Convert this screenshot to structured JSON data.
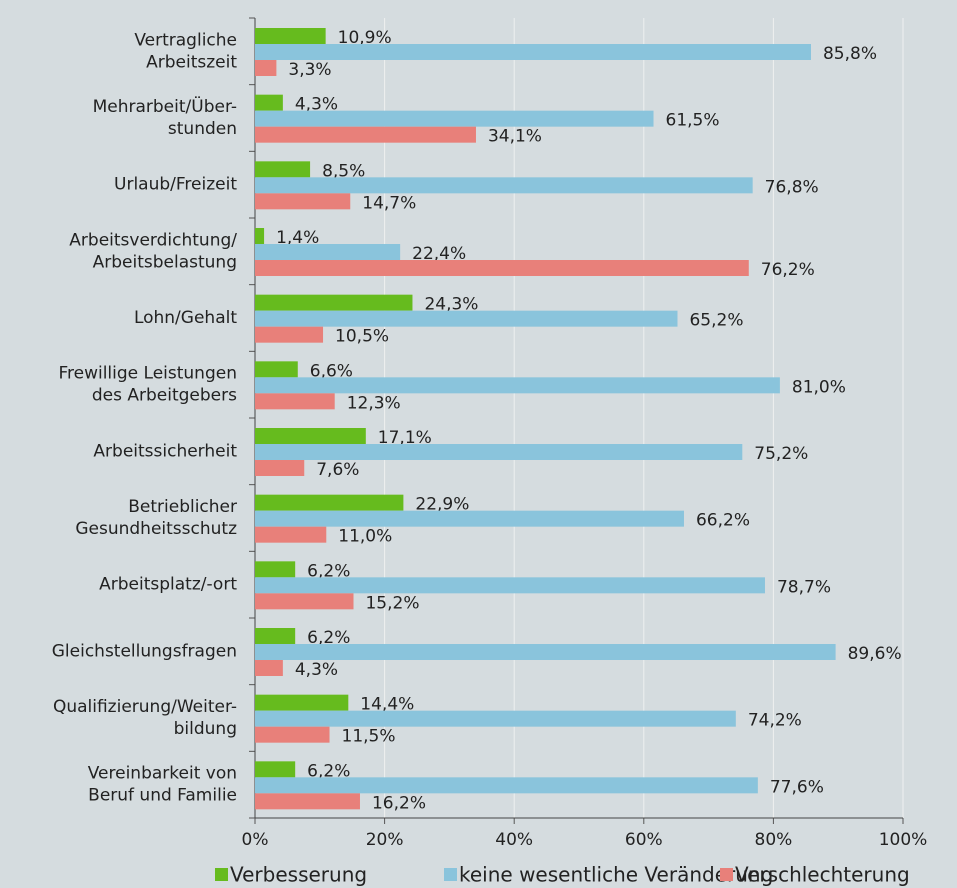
{
  "chart_data": {
    "type": "bar",
    "orientation": "horizontal",
    "categories": [
      [
        "Vertragliche",
        "Arbeitszeit"
      ],
      [
        "Mehrarbeit/Über-",
        "stunden"
      ],
      [
        "Urlaub/Freizeit"
      ],
      [
        "Arbeitsverdichtung/",
        "Arbeitsbelastung"
      ],
      [
        "Lohn/Gehalt"
      ],
      [
        "Frewillige Leistungen",
        "des Arbeitgebers"
      ],
      [
        "Arbeitssicherheit"
      ],
      [
        "Betrieblicher",
        "Gesundheitsschutz"
      ],
      [
        "Arbeitsplatz/-ort"
      ],
      [
        "Gleichstellungsfragen"
      ],
      [
        "Qualifizierung/Weiter-",
        "bildung"
      ],
      [
        "Vereinbarkeit von",
        "Beruf und Familie"
      ]
    ],
    "series": [
      {
        "name": "Verbesserung",
        "color": "#66bb1e",
        "values": [
          10.9,
          4.3,
          8.5,
          1.4,
          24.3,
          6.6,
          17.1,
          22.9,
          6.2,
          6.2,
          14.4,
          6.2
        ],
        "value_labels": [
          "10,9%",
          "4,3%",
          "8,5%",
          "1,4%",
          "24,3%",
          "6,6%",
          "17,1%",
          "22,9%",
          "6,2%",
          "6,2%",
          "14,4%",
          "6,2%"
        ]
      },
      {
        "name": "keine wesentliche Veränderung",
        "color": "#8ac4dc",
        "values": [
          85.8,
          61.5,
          76.8,
          22.4,
          65.2,
          81.0,
          75.2,
          66.2,
          78.7,
          89.6,
          74.2,
          77.6
        ],
        "value_labels": [
          "85,8%",
          "61,5%",
          "76,8%",
          "22,4%",
          "65,2%",
          "81,0%",
          "75,2%",
          "66,2%",
          "78,7%",
          "89,6%",
          "74,2%",
          "77,6%"
        ]
      },
      {
        "name": "Verschlechterung",
        "color": "#e8807a",
        "values": [
          3.3,
          34.1,
          14.7,
          76.2,
          10.5,
          12.3,
          7.6,
          11.0,
          15.2,
          4.3,
          11.5,
          16.2
        ],
        "value_labels": [
          "3,3%",
          "34,1%",
          "14,7%",
          "76,2%",
          "10,5%",
          "12,3%",
          "7,6%",
          "11,0%",
          "15,2%",
          "4,3%",
          "11,5%",
          "16,2%"
        ]
      }
    ],
    "xlim": [
      0,
      100
    ],
    "xticks": [
      {
        "value": 0,
        "label": "0%"
      },
      {
        "value": 20,
        "label": "20%"
      },
      {
        "value": 40,
        "label": "40%"
      },
      {
        "value": 60,
        "label": "60%"
      },
      {
        "value": 80,
        "label": "80%"
      },
      {
        "value": 100,
        "label": "100%"
      }
    ],
    "grid": true,
    "legend": "bottom"
  }
}
